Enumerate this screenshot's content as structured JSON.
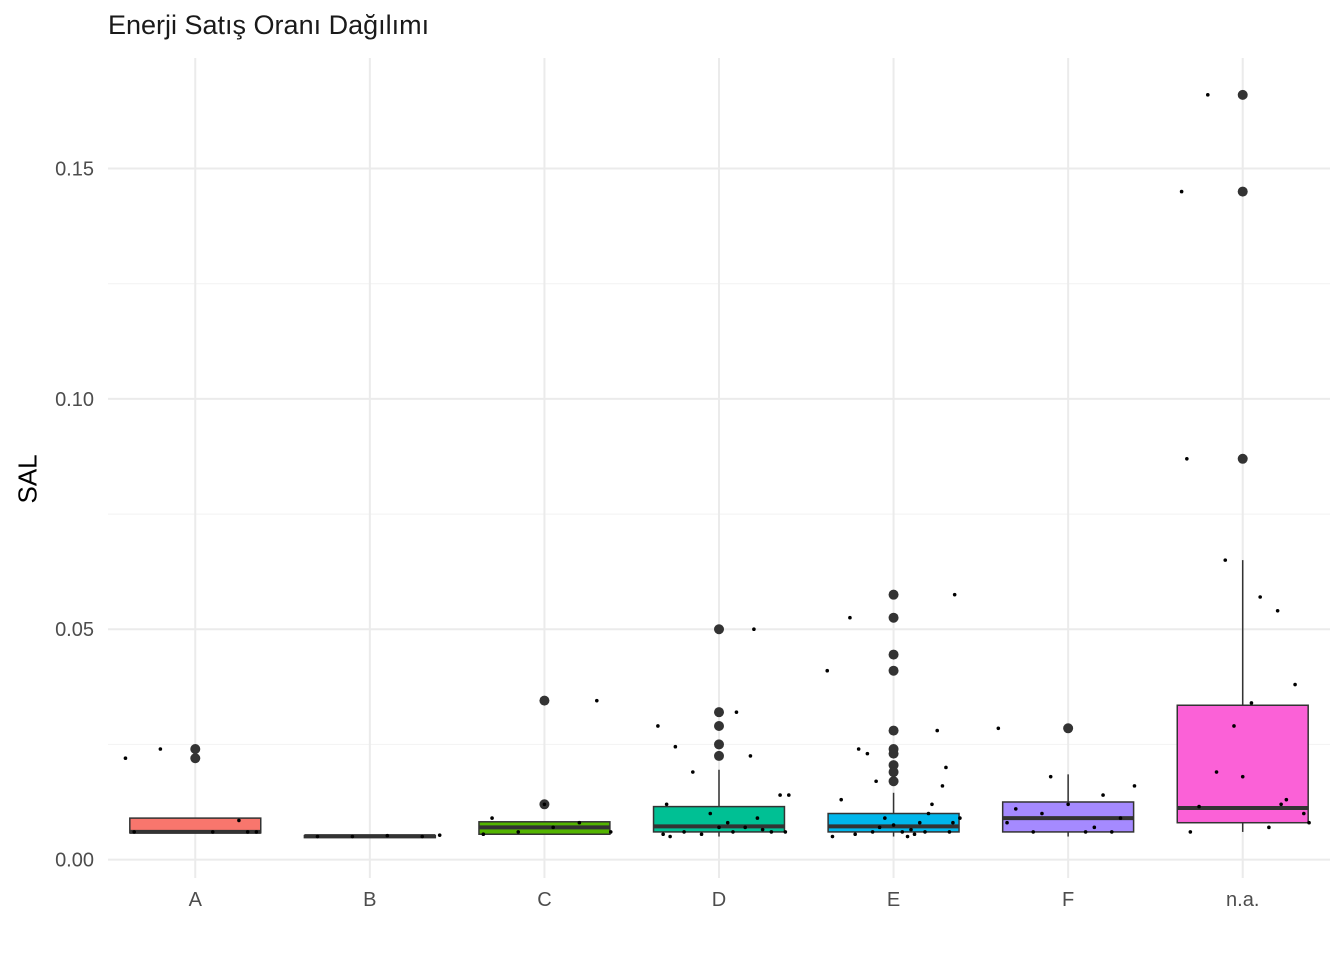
{
  "chart_data": {
    "type": "boxplot",
    "title": "Enerji Satış Oranı Dağılımı",
    "xlabel": "",
    "ylabel": "SAL",
    "ylim": [
      -0.004,
      0.174
    ],
    "y_ticks": [
      0.0,
      0.05,
      0.1,
      0.15
    ],
    "y_tick_labels": [
      "0.00",
      "0.05",
      "0.10",
      "0.15"
    ],
    "grid": true,
    "legend": "none",
    "categories": [
      "A",
      "B",
      "C",
      "D",
      "E",
      "F",
      "n.a."
    ],
    "colors": [
      "#F8766D",
      "#C49A00",
      "#53B400",
      "#00C094",
      "#00B6EB",
      "#A58AFF",
      "#FB61D7"
    ],
    "boxes": [
      {
        "group": "A",
        "q1": 0.0058,
        "median": 0.006,
        "q3": 0.009,
        "whisker_low": 0.0058,
        "whisker_high": 0.009,
        "outliers": [
          0.024,
          0.022
        ]
      },
      {
        "group": "B",
        "q1": 0.005,
        "median": 0.0051,
        "q3": 0.0052,
        "whisker_low": 0.005,
        "whisker_high": 0.0052,
        "outliers": []
      },
      {
        "group": "C",
        "q1": 0.0055,
        "median": 0.007,
        "q3": 0.0082,
        "whisker_low": 0.0055,
        "whisker_high": 0.0082,
        "outliers": [
          0.0345,
          0.012
        ]
      },
      {
        "group": "D",
        "q1": 0.006,
        "median": 0.0072,
        "q3": 0.0115,
        "whisker_low": 0.005,
        "whisker_high": 0.0195,
        "outliers": [
          0.05,
          0.032,
          0.029,
          0.025,
          0.0225
        ]
      },
      {
        "group": "E",
        "q1": 0.006,
        "median": 0.0072,
        "q3": 0.01,
        "whisker_low": 0.005,
        "whisker_high": 0.0145,
        "outliers": [
          0.0575,
          0.0525,
          0.0445,
          0.041,
          0.028,
          0.024,
          0.023,
          0.0205,
          0.019,
          0.017
        ]
      },
      {
        "group": "F",
        "q1": 0.006,
        "median": 0.009,
        "q3": 0.0125,
        "whisker_low": 0.005,
        "whisker_high": 0.0185,
        "outliers": [
          0.0285
        ]
      },
      {
        "group": "n.a.",
        "q1": 0.008,
        "median": 0.0112,
        "q3": 0.0335,
        "whisker_low": 0.006,
        "whisker_high": 0.065,
        "outliers": [
          0.166,
          0.145,
          0.087
        ]
      }
    ],
    "jitter_points": [
      {
        "group": "A",
        "x": [
          -0.4,
          -0.2,
          0.25,
          -0.35,
          0.1,
          0.3,
          0.35
        ],
        "y": [
          0.022,
          0.024,
          0.0085,
          0.006,
          0.006,
          0.006,
          0.006
        ]
      },
      {
        "group": "B",
        "x": [
          -0.3,
          -0.1,
          0.1,
          0.3,
          0.4
        ],
        "y": [
          0.005,
          0.005,
          0.0052,
          0.005,
          0.0053
        ]
      },
      {
        "group": "C",
        "x": [
          -0.3,
          -0.15,
          0.0,
          0.05,
          0.2,
          0.3,
          0.38,
          -0.35
        ],
        "y": [
          0.009,
          0.006,
          0.012,
          0.007,
          0.008,
          0.0345,
          0.006,
          0.0055
        ]
      },
      {
        "group": "D",
        "x": [
          -0.35,
          -0.25,
          -0.3,
          -0.15,
          -0.05,
          0.05,
          0.15,
          0.25,
          0.35,
          0.4,
          -0.2,
          0.1,
          0.2,
          -0.1,
          0.3,
          0.0,
          -0.32,
          0.18,
          0.22,
          -0.28,
          0.08,
          0.38
        ],
        "y": [
          0.029,
          0.0245,
          0.012,
          0.019,
          0.01,
          0.008,
          0.007,
          0.0065,
          0.014,
          0.014,
          0.006,
          0.032,
          0.05,
          0.0055,
          0.006,
          0.007,
          0.0055,
          0.0225,
          0.009,
          0.005,
          0.006,
          0.006
        ]
      },
      {
        "group": "E",
        "x": [
          -0.38,
          -0.25,
          -0.2,
          -0.15,
          -0.1,
          -0.05,
          0.0,
          0.05,
          0.1,
          0.15,
          0.2,
          0.25,
          0.3,
          0.35,
          0.38,
          -0.3,
          -0.35,
          0.28,
          0.32,
          0.12,
          -0.12,
          0.22,
          -0.22,
          0.08,
          -0.08,
          0.18,
          0.34
        ],
        "y": [
          0.041,
          0.0525,
          0.024,
          0.023,
          0.017,
          0.009,
          0.0075,
          0.006,
          0.0065,
          0.008,
          0.01,
          0.028,
          0.02,
          0.0575,
          0.009,
          0.013,
          0.005,
          0.016,
          0.006,
          0.0055,
          0.006,
          0.012,
          0.0055,
          0.005,
          0.007,
          0.006,
          0.008
        ]
      },
      {
        "group": "F",
        "x": [
          -0.4,
          -0.3,
          -0.2,
          -0.1,
          0.0,
          0.1,
          0.2,
          0.3,
          0.38,
          -0.35,
          0.25,
          0.15,
          -0.15
        ],
        "y": [
          0.0285,
          0.011,
          0.006,
          0.018,
          0.012,
          0.006,
          0.014,
          0.009,
          0.016,
          0.008,
          0.006,
          0.007,
          0.01
        ]
      },
      {
        "group": "n.a.",
        "x": [
          -0.35,
          -0.32,
          -0.1,
          -0.05,
          0.0,
          0.1,
          0.2,
          0.25,
          0.3,
          0.35,
          0.38,
          -0.2,
          -0.15,
          -0.25,
          0.05,
          0.15,
          -0.3,
          0.22
        ],
        "y": [
          0.145,
          0.087,
          0.065,
          0.029,
          0.018,
          0.057,
          0.054,
          0.013,
          0.038,
          0.01,
          0.008,
          0.166,
          0.019,
          0.0115,
          0.034,
          0.007,
          0.006,
          0.012
        ]
      }
    ]
  }
}
